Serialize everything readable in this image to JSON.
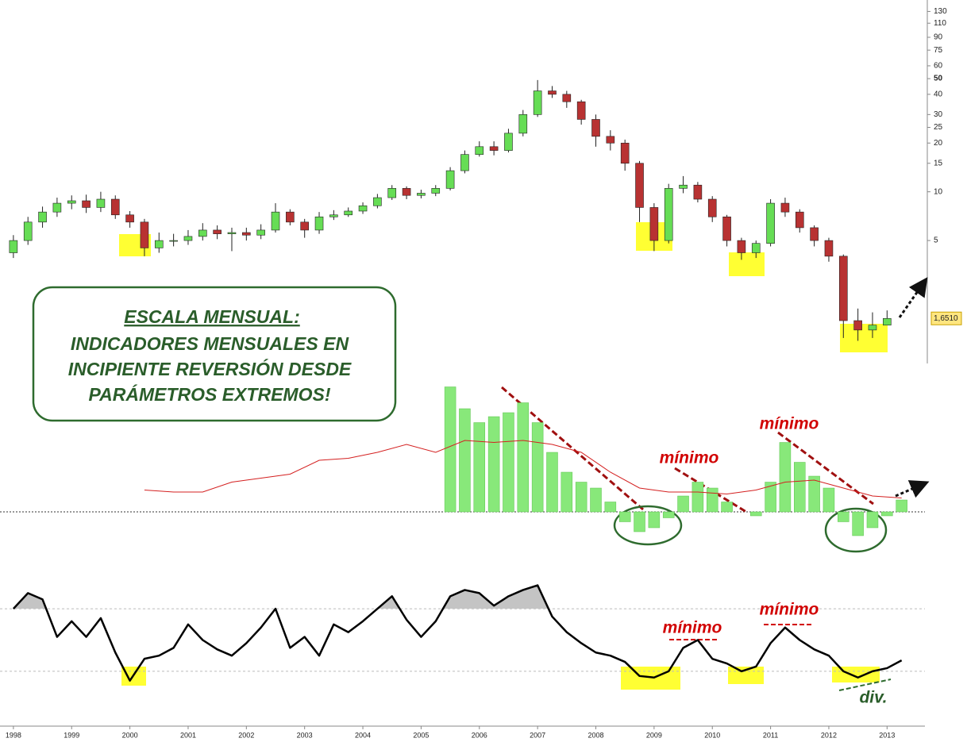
{
  "chart_data": [
    {
      "type": "candlestick",
      "log_scale": true,
      "up_color": "#66dd55",
      "down_color": "#b83232",
      "xlim": [
        1997.77,
        2013.65
      ],
      "ylim": [
        0.9,
        153
      ],
      "yticks": [
        130,
        110,
        90,
        75,
        60,
        50,
        40,
        30,
        25,
        20,
        15,
        10,
        5
      ],
      "bold_tick": 50,
      "last_price": {
        "value": 1.651,
        "label": "1,6510"
      },
      "x": [
        1998,
        1998.25,
        1998.5,
        1998.75,
        1999,
        1999.25,
        1999.5,
        1999.75,
        2000,
        2000.25,
        2000.5,
        2000.75,
        2001,
        2001.25,
        2001.5,
        2001.75,
        2002,
        2002.25,
        2002.5,
        2002.75,
        2003,
        2003.25,
        2003.5,
        2003.75,
        2004,
        2004.25,
        2004.5,
        2004.75,
        2005,
        2005.25,
        2005.5,
        2005.75,
        2006,
        2006.25,
        2006.5,
        2006.75,
        2007,
        2007.25,
        2007.5,
        2007.75,
        2008,
        2008.25,
        2008.5,
        2008.75,
        2009,
        2009.25,
        2009.5,
        2009.75,
        2010,
        2010.25,
        2010.5,
        2010.75,
        2011,
        2011.25,
        2011.5,
        2011.75,
        2012,
        2012.25,
        2012.5,
        2012.75,
        2013
      ],
      "open": [
        4.2,
        5.0,
        6.5,
        7.5,
        8.5,
        8.8,
        8.0,
        9.0,
        7.2,
        6.5,
        4.5,
        5.0,
        5.0,
        5.3,
        5.8,
        5.5,
        5.6,
        5.4,
        5.8,
        7.5,
        6.5,
        5.8,
        7.0,
        7.2,
        7.6,
        8.2,
        9.2,
        10.5,
        9.5,
        9.8,
        10.5,
        13.5,
        17,
        19,
        18,
        23,
        30,
        42,
        40,
        36,
        28,
        22,
        20,
        15,
        8,
        5,
        10.5,
        11,
        9,
        7,
        5,
        4.2,
        4.8,
        8.5,
        7.5,
        6.0,
        5.0,
        4.0,
        1.6,
        1.4,
        1.5
      ],
      "high": [
        5.4,
        7.0,
        8.1,
        9.2,
        9.5,
        9.6,
        10.0,
        9.5,
        7.6,
        6.8,
        5.6,
        5.5,
        5.8,
        6.4,
        6.2,
        6.0,
        6.0,
        6.3,
        8.5,
        7.8,
        6.8,
        7.5,
        7.7,
        8.0,
        8.6,
        9.7,
        11.0,
        10.8,
        10.3,
        11.0,
        14.2,
        18.0,
        20.5,
        20.5,
        24.5,
        32,
        49,
        45,
        42,
        37,
        30,
        24,
        21,
        15.5,
        8.5,
        11.2,
        12.5,
        11.5,
        9.4,
        7.2,
        5.2,
        5.0,
        9.0,
        9.2,
        7.8,
        6.2,
        5.2,
        4.1,
        1.9,
        1.8,
        1.85
      ],
      "low": [
        3.9,
        4.7,
        6.0,
        7.0,
        7.8,
        7.4,
        7.5,
        6.8,
        6.0,
        4.0,
        4.2,
        4.6,
        4.7,
        5.0,
        5.1,
        4.3,
        5.0,
        5.1,
        5.6,
        6.2,
        5.2,
        5.5,
        6.7,
        7.0,
        7.3,
        7.9,
        8.9,
        9.0,
        9.1,
        9.4,
        10.2,
        13.0,
        16.5,
        16.8,
        17.5,
        22,
        29,
        38,
        33,
        26,
        19,
        18,
        13.5,
        6.5,
        4.3,
        4.8,
        9.8,
        8.6,
        6.5,
        4.6,
        3.8,
        3.9,
        4.6,
        7.0,
        5.6,
        4.6,
        3.7,
        1.25,
        1.2,
        1.25,
        1.55
      ],
      "close": [
        5.0,
        6.5,
        7.5,
        8.5,
        8.8,
        8.0,
        9.0,
        7.2,
        6.5,
        4.5,
        5.0,
        5.0,
        5.3,
        5.8,
        5.5,
        5.6,
        5.4,
        5.8,
        7.5,
        6.5,
        5.8,
        7.0,
        7.2,
        7.6,
        8.2,
        9.2,
        10.5,
        9.5,
        9.8,
        10.5,
        13.5,
        17,
        19,
        18,
        23,
        30,
        42,
        40,
        36,
        28,
        22,
        20,
        15,
        8,
        5,
        10.5,
        11,
        9,
        7,
        5,
        4.2,
        4.8,
        8.5,
        7.5,
        6.0,
        5.0,
        4.0,
        1.6,
        1.4,
        1.5,
        1.65
      ]
    },
    {
      "type": "bar",
      "color": "#88e87a",
      "xlim": [
        1997.77,
        2013.65
      ],
      "ylim": [
        -30,
        70
      ],
      "zero_line": true,
      "x": [
        2005.5,
        2005.75,
        2006,
        2006.25,
        2006.5,
        2006.75,
        2007,
        2007.25,
        2007.5,
        2007.75,
        2008,
        2008.25,
        2008.5,
        2008.75,
        2009,
        2009.25,
        2009.5,
        2009.75,
        2010,
        2010.25,
        2010.5,
        2010.75,
        2011,
        2011.25,
        2011.5,
        2011.75,
        2012,
        2012.25,
        2012.5,
        2012.75,
        2013,
        2013.25
      ],
      "values": [
        63,
        52,
        45,
        48,
        50,
        55,
        45,
        30,
        20,
        15,
        12,
        5,
        -5,
        -10,
        -8,
        -3,
        8,
        15,
        12,
        5,
        0,
        -2,
        15,
        35,
        25,
        18,
        12,
        -5,
        -12,
        -8,
        -2,
        6
      ],
      "ma_color": "#d42020",
      "ma_x": [
        2000.25,
        2000.75,
        2001.25,
        2001.75,
        2002.25,
        2002.75,
        2003.25,
        2003.75,
        2004.25,
        2004.75,
        2005.25,
        2005.75,
        2006.25,
        2006.75,
        2007.25,
        2007.75,
        2008.25,
        2008.75,
        2009.25,
        2009.75,
        2010.25,
        2010.75,
        2011.25,
        2011.75,
        2012.25,
        2012.75,
        2013.25
      ],
      "ma_values": [
        11,
        10,
        10,
        15,
        17,
        19,
        26,
        27,
        30,
        34,
        30,
        36,
        35,
        36,
        34,
        30,
        20,
        12,
        10,
        10,
        9,
        11,
        15,
        16,
        12,
        8,
        7
      ]
    },
    {
      "type": "line",
      "color": "#000000",
      "fill_color": "#c4c4c4",
      "xlim": [
        1997.77,
        2013.65
      ],
      "ylim": [
        0,
        100
      ],
      "levels": [
        30,
        70
      ],
      "xticks": [
        1998,
        1999,
        2000,
        2001,
        2002,
        2003,
        2004,
        2005,
        2006,
        2007,
        2008,
        2009,
        2010,
        2011,
        2012,
        2013
      ],
      "x": [
        1998,
        1998.25,
        1998.5,
        1998.75,
        1999,
        1999.25,
        1999.5,
        1999.75,
        2000,
        2000.25,
        2000.5,
        2000.75,
        2001,
        2001.25,
        2001.5,
        2001.75,
        2002,
        2002.25,
        2002.5,
        2002.75,
        2003,
        2003.25,
        2003.5,
        2003.75,
        2004,
        2004.25,
        2004.5,
        2004.75,
        2005,
        2005.25,
        2005.5,
        2005.75,
        2006,
        2006.25,
        2006.5,
        2006.75,
        2007,
        2007.25,
        2007.5,
        2007.75,
        2008,
        2008.25,
        2008.5,
        2008.75,
        2009,
        2009.25,
        2009.5,
        2009.75,
        2010,
        2010.25,
        2010.5,
        2010.75,
        2011,
        2011.25,
        2011.5,
        2011.75,
        2012,
        2012.25,
        2012.5,
        2012.75,
        2013,
        2013.25
      ],
      "values": [
        70,
        80,
        76,
        52,
        62,
        52,
        64,
        42,
        24,
        38,
        40,
        45,
        60,
        50,
        44,
        40,
        48,
        58,
        70,
        45,
        52,
        40,
        60,
        55,
        62,
        70,
        78,
        63,
        52,
        62,
        78,
        82,
        80,
        72,
        78,
        82,
        85,
        65,
        55,
        48,
        42,
        40,
        36,
        27,
        26,
        30,
        45,
        50,
        38,
        35,
        30,
        33,
        48,
        58,
        50,
        44,
        40,
        30,
        26,
        30,
        32,
        37
      ]
    }
  ],
  "note_lines": [
    "ESCALA MENSUAL:",
    "INDICADORES MENSUALES EN",
    "INCIPIENTE REVERSIÓN DESDE",
    "PARÁMETROS EXTREMOS!"
  ],
  "labels": [
    "mínimo",
    "mínimo",
    "mínimo",
    "mínimo",
    "div."
  ]
}
